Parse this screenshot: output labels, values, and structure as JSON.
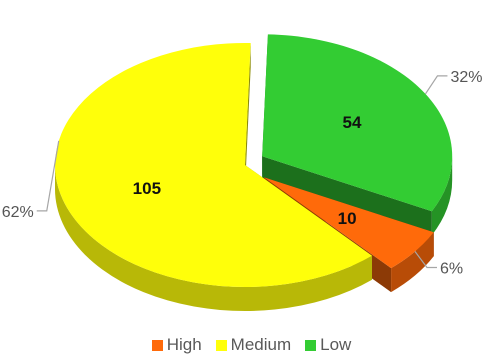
{
  "chart_data": {
    "type": "pie",
    "title": "",
    "legend_position": "bottom",
    "categories": [
      "High",
      "Medium",
      "Low"
    ],
    "values": [
      10,
      105,
      54
    ],
    "percent_labels": [
      "6%",
      "62%",
      "32%"
    ],
    "colors": [
      "#ff6a0a",
      "#ffff0a",
      "#33cc33"
    ],
    "exploded": [
      "High",
      "Low"
    ]
  }
}
